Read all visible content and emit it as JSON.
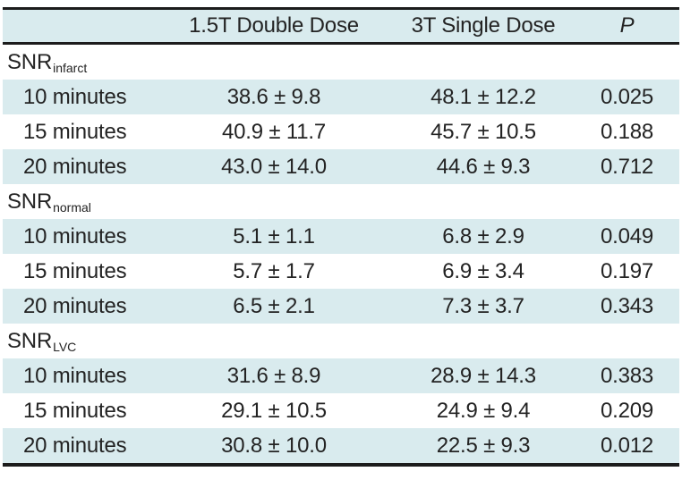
{
  "colors": {
    "row_highlight": "#d9ebee",
    "border": "#1c1c1c",
    "text": "#232323"
  },
  "table": {
    "header": {
      "col1": "",
      "col2": "1.5T Double Dose",
      "col3": "3T Single Dose",
      "col4": "P"
    },
    "sections": [
      {
        "name": "SNR",
        "sub": "infarct",
        "rows": [
          {
            "time": "10 minutes",
            "dose_15t": "38.6 ± 9.8",
            "dose_3t": "48.1 ± 12.2",
            "p": "0.025"
          },
          {
            "time": "15 minutes",
            "dose_15t": "40.9 ± 11.7",
            "dose_3t": "45.7 ± 10.5",
            "p": "0.188"
          },
          {
            "time": "20 minutes",
            "dose_15t": "43.0 ± 14.0",
            "dose_3t": "44.6 ± 9.3",
            "p": "0.712"
          }
        ]
      },
      {
        "name": "SNR",
        "sub": "normal",
        "rows": [
          {
            "time": "10 minutes",
            "dose_15t": "5.1 ± 1.1",
            "dose_3t": "6.8 ± 2.9",
            "p": "0.049"
          },
          {
            "time": "15 minutes",
            "dose_15t": "5.7 ± 1.7",
            "dose_3t": "6.9 ± 3.4",
            "p": "0.197"
          },
          {
            "time": "20 minutes",
            "dose_15t": "6.5 ± 2.1",
            "dose_3t": "7.3 ± 3.7",
            "p": "0.343"
          }
        ]
      },
      {
        "name": "SNR",
        "sub": "LVC",
        "rows": [
          {
            "time": "10 minutes",
            "dose_15t": "31.6 ± 8.9",
            "dose_3t": "28.9 ± 14.3",
            "p": "0.383"
          },
          {
            "time": "15 minutes",
            "dose_15t": "29.1 ± 10.5",
            "dose_3t": "24.9 ± 9.4",
            "p": "0.209"
          },
          {
            "time": "20 minutes",
            "dose_15t": "30.8 ± 10.0",
            "dose_3t": "22.5 ± 9.3",
            "p": "0.012"
          }
        ]
      }
    ]
  }
}
